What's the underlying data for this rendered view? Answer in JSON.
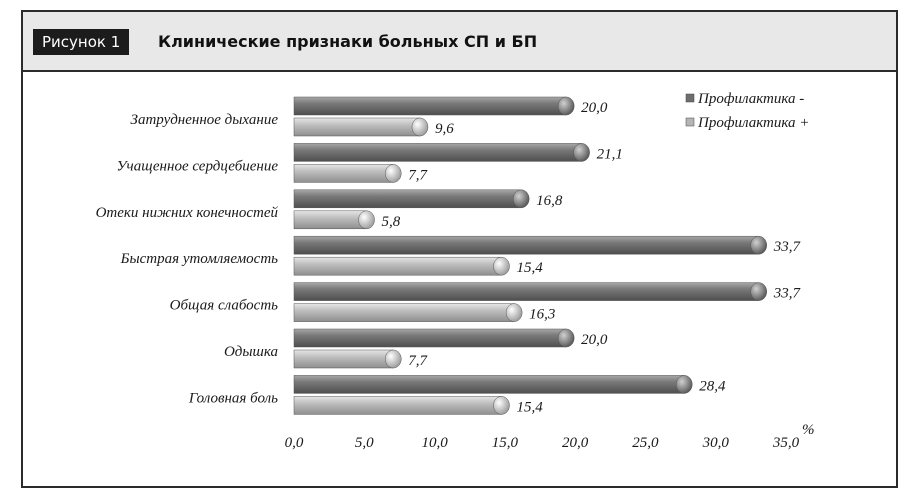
{
  "figure": {
    "label": "Рисунок 1",
    "title": "Клинические признаки больных СП и БП"
  },
  "chart_data": {
    "type": "bar",
    "orientation": "horizontal",
    "unit": "%",
    "categories": [
      "Затрудненное дыхание",
      "Учащенное сердцебиение",
      "Отеки нижних конечностей",
      "Быстрая утомляемость",
      "Общая слабость",
      "Одышка",
      "Головная боль"
    ],
    "series": [
      {
        "name": "Профилактика -",
        "color": "#6e6e6e",
        "values": [
          20.0,
          21.1,
          16.8,
          33.7,
          33.7,
          20.0,
          28.4
        ]
      },
      {
        "name": "Профилактика +",
        "color": "#b5b5b5",
        "values": [
          9.6,
          7.7,
          5.8,
          15.4,
          16.3,
          7.7,
          15.4
        ]
      }
    ],
    "x_ticks": [
      "0,0",
      "5,0",
      "10,0",
      "15,0",
      "20,0",
      "25,0",
      "30,0",
      "35,0"
    ],
    "xlim": [
      0,
      35
    ],
    "data_labels": [
      [
        "20,0",
        "21,1",
        "16,8",
        "33,7",
        "33,7",
        "20,0",
        "28,4"
      ],
      [
        "9,6",
        "7,7",
        "5,8",
        "15,4",
        "16,3",
        "7,7",
        "15,4"
      ]
    ],
    "legend_position": "top-right",
    "grid": false
  }
}
